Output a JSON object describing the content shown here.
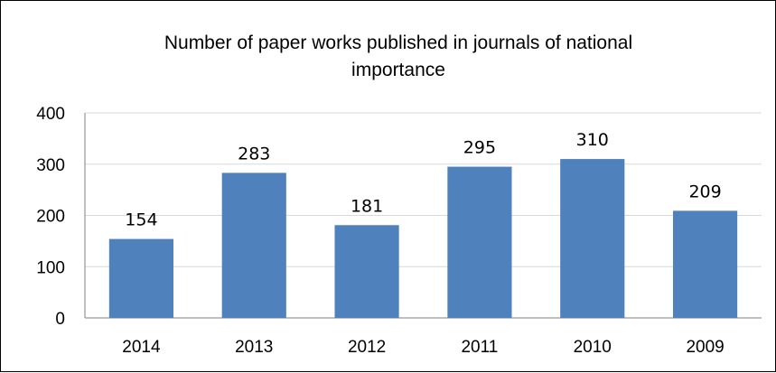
{
  "chart_data": {
    "type": "bar",
    "title_lines": [
      "Number of paper works published  in journals of national",
      "importance"
    ],
    "categories": [
      "2014",
      "2013",
      "2012",
      "2011",
      "2010",
      "2009"
    ],
    "values": [
      154,
      283,
      181,
      295,
      310,
      209
    ],
    "ylim": [
      0,
      400
    ],
    "yticks": [
      0,
      100,
      200,
      300,
      400
    ],
    "grid": true,
    "legend": "none",
    "bar_color": "#4F81BD",
    "grid_color": "#D9D9D9"
  }
}
